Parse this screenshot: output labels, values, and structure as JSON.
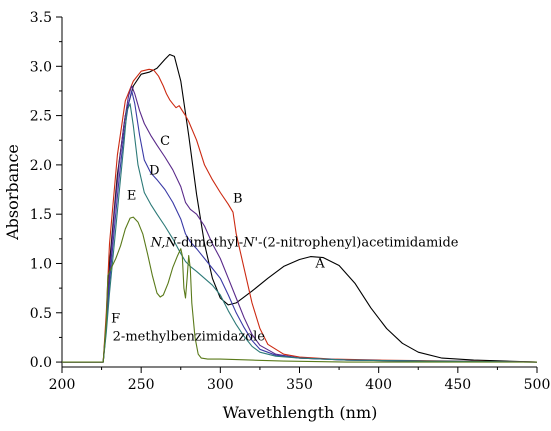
{
  "chart_data": {
    "type": "line",
    "title": "",
    "xlabel": "Wavethlength (nm)",
    "ylabel": "Absorbance",
    "xlim": [
      200,
      500
    ],
    "ylim": [
      -0.05,
      3.5
    ],
    "x_ticks": [
      "200",
      "250",
      "300",
      "350",
      "400",
      "450",
      "500"
    ],
    "x_tick_values": [
      200,
      250,
      300,
      350,
      400,
      450,
      500
    ],
    "y_ticks": [
      "0.0",
      "0.5",
      "1.0",
      "1.5",
      "2.0",
      "2.5",
      "3.0",
      "3.5"
    ],
    "y_tick_values": [
      0,
      0.5,
      1.0,
      1.5,
      2.0,
      2.5,
      3.0,
      3.5
    ],
    "legend": "none",
    "series": [
      {
        "name": "A",
        "color": "#000000",
        "points": [
          [
            200,
            0
          ],
          [
            226,
            0
          ],
          [
            228,
            0.35
          ],
          [
            230,
            1.0
          ],
          [
            235,
            1.9
          ],
          [
            240,
            2.5
          ],
          [
            245,
            2.8
          ],
          [
            250,
            2.92
          ],
          [
            255,
            2.94
          ],
          [
            260,
            2.98
          ],
          [
            265,
            3.07
          ],
          [
            268,
            3.12
          ],
          [
            271,
            3.1
          ],
          [
            275,
            2.85
          ],
          [
            280,
            2.3
          ],
          [
            285,
            1.7
          ],
          [
            290,
            1.2
          ],
          [
            295,
            0.85
          ],
          [
            300,
            0.65
          ],
          [
            305,
            0.58
          ],
          [
            310,
            0.6
          ],
          [
            320,
            0.72
          ],
          [
            330,
            0.85
          ],
          [
            340,
            0.97
          ],
          [
            350,
            1.04
          ],
          [
            357,
            1.07
          ],
          [
            365,
            1.06
          ],
          [
            375,
            0.98
          ],
          [
            385,
            0.8
          ],
          [
            395,
            0.55
          ],
          [
            405,
            0.34
          ],
          [
            415,
            0.19
          ],
          [
            425,
            0.1
          ],
          [
            440,
            0.04
          ],
          [
            460,
            0.02
          ],
          [
            480,
            0.01
          ],
          [
            500,
            0.0
          ]
        ]
      },
      {
        "name": "B",
        "color": "#cc2a12",
        "points": [
          [
            200,
            0
          ],
          [
            226,
            0
          ],
          [
            228,
            0.5
          ],
          [
            230,
            1.2
          ],
          [
            235,
            2.1
          ],
          [
            240,
            2.65
          ],
          [
            245,
            2.85
          ],
          [
            250,
            2.95
          ],
          [
            255,
            2.97
          ],
          [
            258,
            2.96
          ],
          [
            261,
            2.9
          ],
          [
            264,
            2.8
          ],
          [
            266,
            2.72
          ],
          [
            268,
            2.66
          ],
          [
            270,
            2.62
          ],
          [
            272,
            2.58
          ],
          [
            274,
            2.6
          ],
          [
            276,
            2.55
          ],
          [
            278,
            2.5
          ],
          [
            280,
            2.44
          ],
          [
            285,
            2.25
          ],
          [
            290,
            2.0
          ],
          [
            295,
            1.85
          ],
          [
            300,
            1.72
          ],
          [
            305,
            1.6
          ],
          [
            308,
            1.52
          ],
          [
            310,
            1.3
          ],
          [
            315,
            0.95
          ],
          [
            320,
            0.6
          ],
          [
            325,
            0.34
          ],
          [
            330,
            0.18
          ],
          [
            340,
            0.08
          ],
          [
            350,
            0.05
          ],
          [
            370,
            0.03
          ],
          [
            400,
            0.02
          ],
          [
            450,
            0.01
          ],
          [
            500,
            0.0
          ]
        ]
      },
      {
        "name": "C",
        "color": "#5a2a8a",
        "points": [
          [
            200,
            0
          ],
          [
            226,
            0
          ],
          [
            228,
            0.4
          ],
          [
            230,
            0.9
          ],
          [
            233,
            1.5
          ],
          [
            236,
            2.0
          ],
          [
            239,
            2.4
          ],
          [
            242,
            2.7
          ],
          [
            244,
            2.8
          ],
          [
            246,
            2.72
          ],
          [
            249,
            2.55
          ],
          [
            252,
            2.42
          ],
          [
            256,
            2.3
          ],
          [
            260,
            2.2
          ],
          [
            265,
            2.08
          ],
          [
            270,
            1.95
          ],
          [
            275,
            1.78
          ],
          [
            278,
            1.62
          ],
          [
            281,
            1.55
          ],
          [
            285,
            1.5
          ],
          [
            290,
            1.38
          ],
          [
            295,
            1.2
          ],
          [
            300,
            1.05
          ],
          [
            305,
            0.85
          ],
          [
            310,
            0.65
          ],
          [
            315,
            0.45
          ],
          [
            320,
            0.28
          ],
          [
            325,
            0.17
          ],
          [
            335,
            0.08
          ],
          [
            350,
            0.04
          ],
          [
            380,
            0.02
          ],
          [
            430,
            0.01
          ],
          [
            500,
            0.0
          ]
        ]
      },
      {
        "name": "D",
        "color": "#3a3aa6",
        "points": [
          [
            200,
            0
          ],
          [
            226,
            0
          ],
          [
            228,
            0.35
          ],
          [
            230,
            0.8
          ],
          [
            233,
            1.35
          ],
          [
            236,
            1.85
          ],
          [
            239,
            2.3
          ],
          [
            242,
            2.62
          ],
          [
            244,
            2.75
          ],
          [
            246,
            2.62
          ],
          [
            249,
            2.3
          ],
          [
            252,
            2.05
          ],
          [
            256,
            1.92
          ],
          [
            260,
            1.85
          ],
          [
            265,
            1.75
          ],
          [
            270,
            1.62
          ],
          [
            275,
            1.45
          ],
          [
            278,
            1.3
          ],
          [
            281,
            1.22
          ],
          [
            285,
            1.15
          ],
          [
            290,
            1.05
          ],
          [
            295,
            0.95
          ],
          [
            300,
            0.85
          ],
          [
            305,
            0.68
          ],
          [
            310,
            0.5
          ],
          [
            315,
            0.35
          ],
          [
            320,
            0.22
          ],
          [
            325,
            0.13
          ],
          [
            335,
            0.07
          ],
          [
            350,
            0.04
          ],
          [
            380,
            0.02
          ],
          [
            430,
            0.01
          ],
          [
            500,
            0.0
          ]
        ]
      },
      {
        "name": "E",
        "color": "#2d7a78",
        "points": [
          [
            200,
            0
          ],
          [
            226,
            0
          ],
          [
            228,
            0.3
          ],
          [
            230,
            0.7
          ],
          [
            233,
            1.2
          ],
          [
            236,
            1.7
          ],
          [
            239,
            2.2
          ],
          [
            241,
            2.55
          ],
          [
            243,
            2.62
          ],
          [
            245,
            2.4
          ],
          [
            248,
            2.0
          ],
          [
            252,
            1.72
          ],
          [
            256,
            1.6
          ],
          [
            260,
            1.5
          ],
          [
            265,
            1.38
          ],
          [
            270,
            1.25
          ],
          [
            275,
            1.1
          ],
          [
            278,
            1.02
          ],
          [
            281,
            0.97
          ],
          [
            285,
            0.92
          ],
          [
            290,
            0.85
          ],
          [
            295,
            0.78
          ],
          [
            300,
            0.68
          ],
          [
            305,
            0.52
          ],
          [
            310,
            0.38
          ],
          [
            315,
            0.26
          ],
          [
            320,
            0.16
          ],
          [
            325,
            0.1
          ],
          [
            335,
            0.06
          ],
          [
            350,
            0.04
          ],
          [
            380,
            0.02
          ],
          [
            430,
            0.01
          ],
          [
            500,
            0.0
          ]
        ]
      },
      {
        "name": "F",
        "color": "#5a7a1a",
        "points": [
          [
            200,
            0
          ],
          [
            226,
            0
          ],
          [
            228,
            0.42
          ],
          [
            229,
            0.88
          ],
          [
            231,
            0.95
          ],
          [
            234,
            1.05
          ],
          [
            237,
            1.18
          ],
          [
            240,
            1.35
          ],
          [
            243,
            1.46
          ],
          [
            245,
            1.47
          ],
          [
            248,
            1.42
          ],
          [
            251,
            1.3
          ],
          [
            254,
            1.1
          ],
          [
            257,
            0.88
          ],
          [
            260,
            0.7
          ],
          [
            262,
            0.66
          ],
          [
            264,
            0.68
          ],
          [
            267,
            0.8
          ],
          [
            270,
            0.96
          ],
          [
            273,
            1.08
          ],
          [
            275,
            1.15
          ],
          [
            276,
            1.08
          ],
          [
            277,
            0.75
          ],
          [
            278,
            0.65
          ],
          [
            279,
            0.85
          ],
          [
            280,
            1.08
          ],
          [
            281,
            0.95
          ],
          [
            282,
            0.6
          ],
          [
            284,
            0.25
          ],
          [
            286,
            0.08
          ],
          [
            288,
            0.04
          ],
          [
            292,
            0.03
          ],
          [
            300,
            0.03
          ],
          [
            320,
            0.02
          ],
          [
            340,
            0.01
          ],
          [
            380,
            0.0
          ],
          [
            500,
            0.0
          ]
        ]
      }
    ],
    "annotations": [
      {
        "text": "A",
        "x": 360,
        "y": 0.96
      },
      {
        "text": "B",
        "x": 308,
        "y": 1.62
      },
      {
        "text": "C",
        "x": 262,
        "y": 2.2
      },
      {
        "text": "D",
        "x": 255,
        "y": 1.9
      },
      {
        "text": "E",
        "x": 241,
        "y": 1.65
      },
      {
        "text": "F",
        "x": 231,
        "y": 0.4
      },
      {
        "text": "2-methylbenzimidazole",
        "x": 232,
        "y": 0.22
      },
      {
        "text": "-dimethyl-",
        "italic_prefix": "N,N",
        "italic_mid": "N'",
        "suffix": "-(2-nitrophenyl)acetimidamide",
        "x": 256,
        "y": 1.17
      }
    ]
  }
}
